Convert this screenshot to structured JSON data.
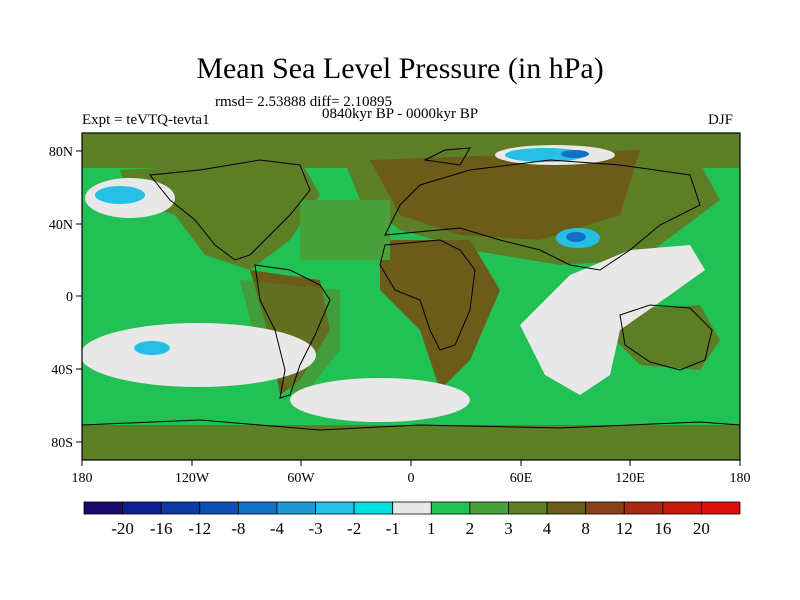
{
  "title": "Mean Sea Level Pressure (in hPa)",
  "stats": "rmsd= 2.53888  diff= 2.10895",
  "period": "0840kyr BP - 0000kyr BP",
  "experiment": "Expt = teVTQ-tevta1",
  "season": "DJF",
  "lat_labels": [
    "80N",
    "40N",
    "0",
    "40S",
    "80S"
  ],
  "lon_labels": [
    "180",
    "120W",
    "60W",
    "0",
    "60E",
    "120E",
    "180"
  ],
  "legend": {
    "labels": [
      "-20",
      "-16",
      "-12",
      "-8",
      "-4",
      "-3",
      "-2",
      "-1",
      "1",
      "2",
      "3",
      "4",
      "8",
      "12",
      "16",
      "20"
    ],
    "colors": [
      "#1a0a6e",
      "#0c1f94",
      "#0d3aa6",
      "#0d52b0",
      "#1470c2",
      "#1e98d6",
      "#27bfe6",
      "#00e0e0",
      "#e8e8e8",
      "#22c155",
      "#4aa03a",
      "#5c7f26",
      "#6b5c1a",
      "#8a4318",
      "#a82a10",
      "#c81a0a",
      "#e00f0f"
    ]
  },
  "palette": {
    "ocean_green": "#22c155",
    "mid_green": "#4aa03a",
    "olive": "#5c7f26",
    "brown": "#6b5c1a",
    "white": "#e8e8e8",
    "cyan": "#27bfe6",
    "blue": "#1470c2"
  }
}
